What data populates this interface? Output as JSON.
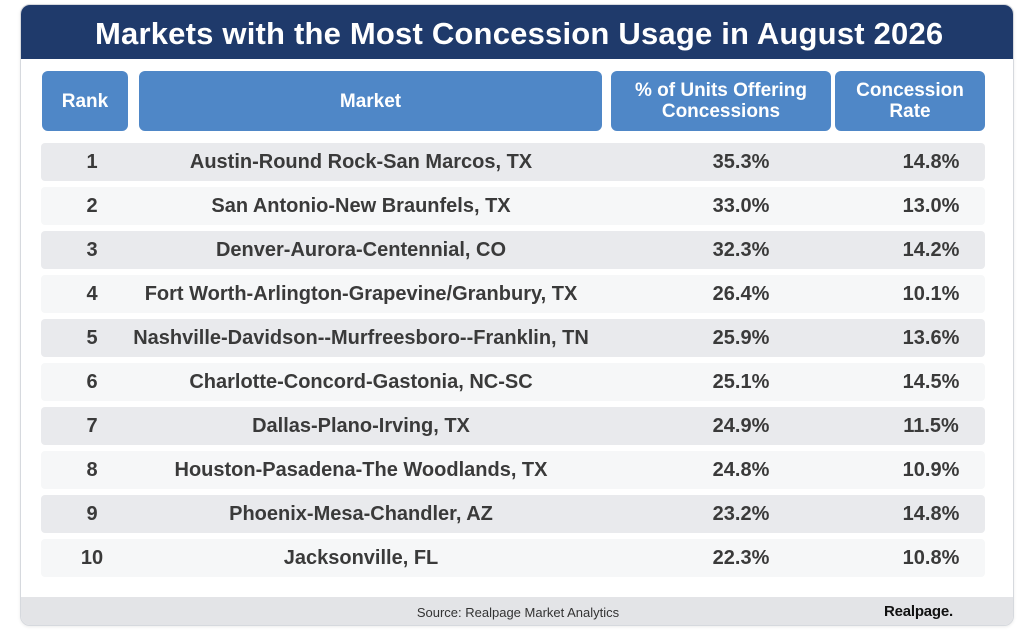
{
  "title": "Markets with the Most Concession Usage in August 2026",
  "headers": {
    "rank": "Rank",
    "market": "Market",
    "pct_line1": "% of Units Offering",
    "pct_line2": "Concessions",
    "rate_line1": "Concession",
    "rate_line2": "Rate"
  },
  "footer": {
    "source": "Source:  Realpage Market Analytics",
    "brand": "Realpage."
  },
  "colors": {
    "title_bar": "#1f3a6b",
    "header_fill": "#4f87c7",
    "row_odd": "#e9eaed",
    "row_even": "#f6f7f8",
    "footer_fill": "#e3e4e7"
  },
  "chart_data": {
    "type": "table",
    "title": "Markets with the Most Concession Usage in August 2026",
    "columns": [
      "Rank",
      "Market",
      "% of Units Offering Concessions",
      "Concession Rate"
    ],
    "rows": [
      {
        "rank": "1",
        "market": "Austin-Round Rock-San Marcos, TX",
        "pct_units": "35.3%",
        "rate": "14.8%"
      },
      {
        "rank": "2",
        "market": "San Antonio-New Braunfels, TX",
        "pct_units": "33.0%",
        "rate": "13.0%"
      },
      {
        "rank": "3",
        "market": "Denver-Aurora-Centennial, CO",
        "pct_units": "32.3%",
        "rate": "14.2%"
      },
      {
        "rank": "4",
        "market": "Fort Worth-Arlington-Grapevine/Granbury, TX",
        "pct_units": "26.4%",
        "rate": "10.1%"
      },
      {
        "rank": "5",
        "market": "Nashville-Davidson--Murfreesboro--Franklin, TN",
        "pct_units": "25.9%",
        "rate": "13.6%"
      },
      {
        "rank": "6",
        "market": "Charlotte-Concord-Gastonia, NC-SC",
        "pct_units": "25.1%",
        "rate": "14.5%"
      },
      {
        "rank": "7",
        "market": "Dallas-Plano-Irving, TX",
        "pct_units": "24.9%",
        "rate": "11.5%"
      },
      {
        "rank": "8",
        "market": "Houston-Pasadena-The Woodlands, TX",
        "pct_units": "24.8%",
        "rate": "10.9%"
      },
      {
        "rank": "9",
        "market": "Phoenix-Mesa-Chandler, AZ",
        "pct_units": "23.2%",
        "rate": "14.8%"
      },
      {
        "rank": "10",
        "market": "Jacksonville, FL",
        "pct_units": "22.3%",
        "rate": "10.8%"
      }
    ]
  }
}
